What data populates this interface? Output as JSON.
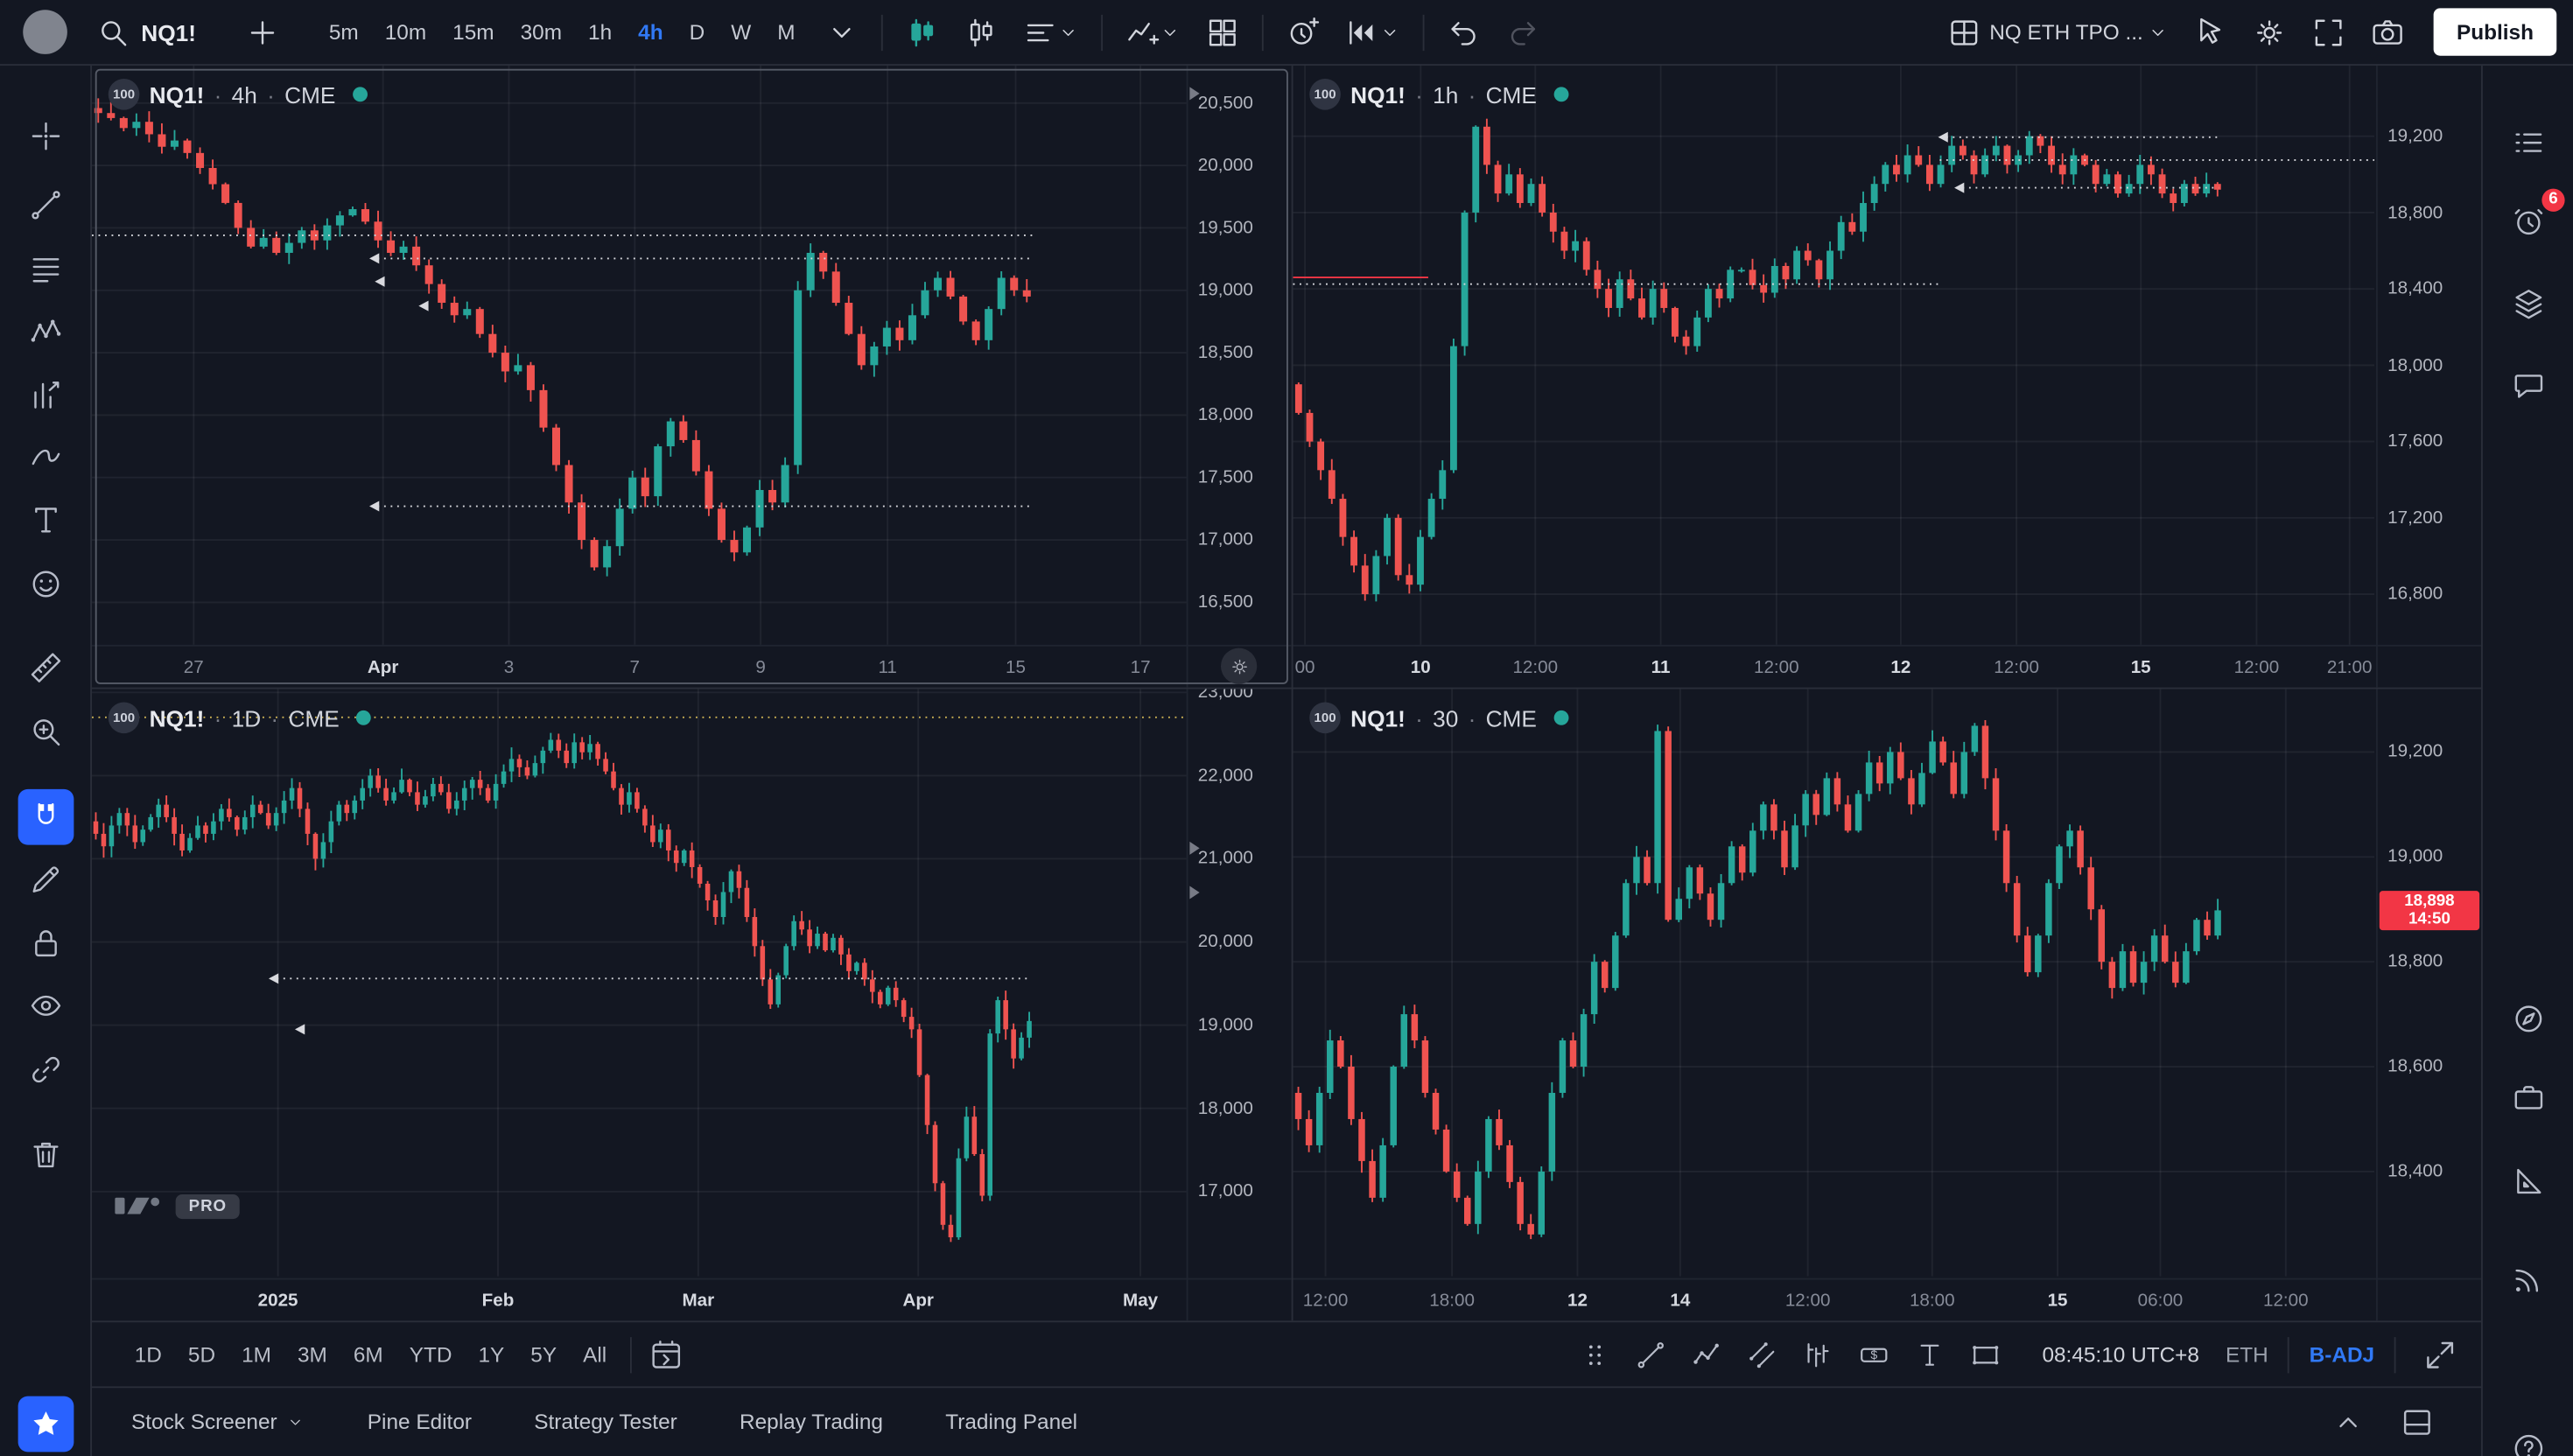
{
  "colors": {
    "up": "#26a69a",
    "down": "#ef5350",
    "accent": "#2962ff",
    "bg": "#131722",
    "border": "#2a2e39",
    "text": "#d1d4dc",
    "muted": "#787b86",
    "axis_text": "#b2b5be",
    "alert": "#f23645",
    "level_line": "#d8d9de",
    "yellow_level": "#cdb254"
  },
  "topbar": {
    "symbol_search": "NQ1!",
    "publish": "Publish",
    "layout_name": "NQ ETH TPO ...",
    "intervals": [
      {
        "label": "5m"
      },
      {
        "label": "10m"
      },
      {
        "label": "15m"
      },
      {
        "label": "30m"
      },
      {
        "label": "1h"
      },
      {
        "label": "4h",
        "active": true
      },
      {
        "label": "D"
      },
      {
        "label": "W"
      },
      {
        "label": "M"
      }
    ],
    "mid_buttons": [
      {
        "icon": "chevron-down",
        "name": "interval-menu-button"
      },
      {
        "sep": true
      },
      {
        "icon": "candles",
        "name": "chart-type-button",
        "tint": "#26a69a"
      },
      {
        "icon": "hollow-candles",
        "name": "chart-style-button"
      },
      {
        "icon": "line-tools",
        "name": "line-type-button",
        "chevron": true
      },
      {
        "sep": true
      },
      {
        "icon": "indicators",
        "name": "indicators-button",
        "chevron": true
      },
      {
        "icon": "grid4",
        "name": "indicator-templates-button"
      },
      {
        "sep": true
      },
      {
        "icon": "alert-plus",
        "name": "create-alert-button"
      },
      {
        "icon": "replay",
        "name": "bar-replay-button",
        "chevron": true
      },
      {
        "sep": true
      },
      {
        "icon": "undo",
        "name": "undo-button"
      },
      {
        "icon": "redo",
        "name": "redo-button",
        "disabled": true
      }
    ],
    "right_buttons": [
      {
        "icon": "layout-grid",
        "name": "layout-select-button",
        "label": true,
        "chevron": true
      },
      {
        "icon": "pointer",
        "name": "quick-actions-button"
      },
      {
        "icon": "gear",
        "name": "settings-button"
      },
      {
        "icon": "fullscreen",
        "name": "fullscreen-button"
      },
      {
        "icon": "camera",
        "name": "snapshot-button"
      }
    ]
  },
  "left_toolbar": {
    "tools": [
      {
        "name": "tool-crosshair",
        "icon": "crosshair"
      },
      {
        "name": "tool-trend-line",
        "icon": "trendline"
      },
      {
        "name": "tool-fib-retracement",
        "icon": "fib"
      },
      {
        "name": "tool-xabcd-pattern",
        "icon": "xabcd"
      },
      {
        "name": "tool-forecast",
        "icon": "forecast"
      },
      {
        "name": "tool-brush",
        "icon": "brush"
      },
      {
        "name": "tool-text",
        "icon": "text-tool"
      },
      {
        "name": "tool-emoji",
        "icon": "smiley"
      },
      {
        "name": "tool-measure",
        "icon": "ruler"
      },
      {
        "name": "tool-zoom",
        "icon": "zoom-plus"
      },
      {
        "name": "magnet-mode",
        "icon": "magnet",
        "active": true
      },
      {
        "name": "drawing-mode",
        "icon": "pencil"
      },
      {
        "name": "lock-drawings",
        "icon": "lock"
      },
      {
        "name": "hide-drawings",
        "icon": "eye"
      },
      {
        "name": "sync-drawings",
        "icon": "link"
      },
      {
        "name": "remove-drawings",
        "icon": "trash"
      },
      {
        "name": "favorite-tools",
        "icon": "star",
        "active": true
      }
    ]
  },
  "right_toolbar": {
    "tools": [
      {
        "name": "watchlist-panel",
        "icon": "watchlist"
      },
      {
        "name": "alerts-panel",
        "icon": "alarm-clock",
        "badge": "6"
      },
      {
        "name": "news-panel",
        "icon": "layers"
      },
      {
        "name": "chat-panel",
        "icon": "chat"
      },
      {
        "name": "object-tree-panel",
        "icon": "compass"
      },
      {
        "name": "portfolio-panel",
        "icon": "briefcase"
      },
      {
        "name": "measure-panel",
        "icon": "protractor"
      },
      {
        "name": "streams-panel",
        "icon": "signal"
      },
      {
        "name": "help-button",
        "icon": "question"
      }
    ]
  },
  "bottom_bar": {
    "ranges": [
      "1D",
      "5D",
      "1M",
      "3M",
      "6M",
      "YTD",
      "1Y",
      "5Y",
      "All"
    ],
    "clock": "08:45:10 UTC+8",
    "session": "ETH",
    "adjustment": "B-ADJ",
    "tools": [
      {
        "icon": "handle",
        "name": "drawing-toolbar-handle"
      },
      {
        "icon": "trendline",
        "name": "tool-trend-line-quick"
      },
      {
        "icon": "polyline",
        "name": "tool-info-line"
      },
      {
        "icon": "channel",
        "name": "tool-parallel-channel"
      },
      {
        "icon": "bars-pattern",
        "name": "tool-bars-pattern"
      },
      {
        "icon": "price-label",
        "name": "tool-price-label"
      },
      {
        "icon": "text-cursor",
        "name": "tool-text-quick"
      },
      {
        "icon": "rect-tool",
        "name": "tool-rectangle"
      }
    ]
  },
  "footer": {
    "items": [
      {
        "label": "Stock Screener",
        "caret": true,
        "name": "stock-screener-tab"
      },
      {
        "label": "Pine Editor",
        "name": "pine-editor-tab"
      },
      {
        "label": "Strategy Tester",
        "name": "strategy-tester-tab"
      },
      {
        "label": "Replay Trading",
        "name": "replay-trading-tab"
      },
      {
        "label": "Trading Panel",
        "name": "trading-panel-tab"
      }
    ]
  },
  "chart_data": [
    {
      "type": "candlestick",
      "symbol": "NQ1!",
      "interval": "4h",
      "exchange": "CME",
      "badge": "100",
      "market_status": "open",
      "active": true,
      "axis_gear": true,
      "y_min": 16160,
      "y_max": 20800,
      "y_ticks": [
        {
          "v": 20500,
          "label": "20,500"
        },
        {
          "v": 20000,
          "label": "20,000"
        },
        {
          "v": 19500,
          "label": "19,500"
        },
        {
          "v": 19000,
          "label": "19,000"
        },
        {
          "v": 18500,
          "label": "18,500"
        },
        {
          "v": 18000,
          "label": "18,000"
        },
        {
          "v": 17500,
          "label": "17,500"
        },
        {
          "v": 17000,
          "label": "17,000"
        },
        {
          "v": 16500,
          "label": "16,500"
        }
      ],
      "x_labels": [
        {
          "p": 0.093,
          "label": "27"
        },
        {
          "p": 0.266,
          "label": "Apr",
          "strong": true
        },
        {
          "p": 0.381,
          "label": "3"
        },
        {
          "p": 0.496,
          "label": "7"
        },
        {
          "p": 0.611,
          "label": "9"
        },
        {
          "p": 0.727,
          "label": "11"
        },
        {
          "p": 0.844,
          "label": "15"
        },
        {
          "p": 0.958,
          "label": "17"
        }
      ],
      "closes": [
        20420,
        20380,
        20300,
        20350,
        20250,
        20150,
        20200,
        20100,
        19980,
        19850,
        19700,
        19500,
        19350,
        19420,
        19300,
        19380,
        19480,
        19400,
        19520,
        19600,
        19650,
        19550,
        19400,
        19300,
        19350,
        19200,
        19050,
        18900,
        18800,
        18850,
        18650,
        18500,
        18350,
        18400,
        18200,
        17900,
        17600,
        17300,
        17000,
        16780,
        16950,
        17250,
        17500,
        17350,
        17750,
        17950,
        17800,
        17550,
        17250,
        17000,
        16900,
        17100,
        17400,
        17300,
        17600,
        19000,
        19300,
        19150,
        18900,
        18650,
        18400,
        18550,
        18700,
        18600,
        18800,
        19000,
        19100,
        18950,
        18750,
        18600,
        18850,
        19100,
        19000,
        18950
      ],
      "levels": [
        {
          "v": 19440,
          "x1": 0,
          "x2": 0.86,
          "dash": true
        },
        {
          "v": 19255,
          "x1": 0.255,
          "x2": 0.86,
          "dash": true,
          "marker": true
        },
        {
          "v": 17270,
          "x1": 0.255,
          "x2": 0.86,
          "dash": true,
          "marker": true
        }
      ],
      "arrows": [
        {
          "x": 0.26,
          "v": 19070
        },
        {
          "x": 0.3,
          "v": 18875
        }
      ],
      "axis_markers": [
        20577
      ]
    },
    {
      "type": "candlestick",
      "symbol": "NQ1!",
      "interval": "1h",
      "exchange": "CME",
      "badge": "100",
      "market_status": "open",
      "y_min": 16535,
      "y_max": 19570,
      "y_ticks": [
        {
          "v": 19200,
          "label": "19,200"
        },
        {
          "v": 18800,
          "label": "18,800"
        },
        {
          "v": 18400,
          "label": "18,400"
        },
        {
          "v": 18000,
          "label": "18,000"
        },
        {
          "v": 17600,
          "label": "17,600"
        },
        {
          "v": 17200,
          "label": "17,200"
        },
        {
          "v": 16800,
          "label": "16,800"
        }
      ],
      "x_labels": [
        {
          "p": 0.011,
          "label": "00"
        },
        {
          "p": 0.118,
          "label": "10",
          "strong": true
        },
        {
          "p": 0.224,
          "label": "12:00"
        },
        {
          "p": 0.34,
          "label": "11",
          "strong": true
        },
        {
          "p": 0.447,
          "label": "12:00"
        },
        {
          "p": 0.562,
          "label": "12",
          "strong": true
        },
        {
          "p": 0.669,
          "label": "12:00"
        },
        {
          "p": 0.784,
          "label": "15",
          "strong": true
        },
        {
          "p": 0.891,
          "label": "12:00"
        },
        {
          "p": 0.977,
          "label": "21:00"
        }
      ],
      "closes": [
        17750,
        17600,
        17450,
        17300,
        17100,
        16950,
        16800,
        17000,
        17200,
        16900,
        16850,
        17100,
        17300,
        17450,
        18100,
        18800,
        19250,
        19050,
        18900,
        19000,
        18850,
        18950,
        18800,
        18700,
        18600,
        18650,
        18500,
        18400,
        18300,
        18450,
        18350,
        18250,
        18400,
        18300,
        18150,
        18100,
        18250,
        18400,
        18350,
        18500,
        18500,
        18420,
        18380,
        18520,
        18450,
        18600,
        18550,
        18450,
        18600,
        18750,
        18700,
        18850,
        18950,
        19050,
        19000,
        19100,
        19050,
        18950,
        19050,
        19150,
        19100,
        19000,
        19100,
        19150,
        19050,
        19100,
        19200,
        19150,
        19050,
        19000,
        19100,
        19050,
        18950,
        19000,
        18900,
        18950,
        19050,
        19000,
        18900,
        18850,
        18950,
        18900,
        18950,
        18920
      ],
      "levels": [
        {
          "v": 18460,
          "x1": 0,
          "x2": 0.125,
          "color": "#f23645"
        },
        {
          "v": 18425,
          "x1": 0,
          "x2": 0.6,
          "dash": true
        },
        {
          "v": 19195,
          "x1": 0.598,
          "x2": 0.856,
          "dash": true,
          "marker": true
        },
        {
          "v": 19075,
          "x1": 0.598,
          "x2": 1.0,
          "dash": true
        },
        {
          "v": 18930,
          "x1": 0.613,
          "x2": 0.856,
          "dash": true,
          "marker": true
        }
      ]
    },
    {
      "type": "candlestick",
      "symbol": "NQ1!",
      "interval": "1D",
      "exchange": "CME",
      "badge": "100",
      "market_status": "open",
      "watermark": "PRO",
      "y_min": 15980,
      "y_max": 23040,
      "y_ticks": [
        {
          "v": 23000,
          "label": "23,000"
        },
        {
          "v": 22000,
          "label": "22,000"
        },
        {
          "v": 21000,
          "label": "21,000"
        },
        {
          "v": 20000,
          "label": "20,000"
        },
        {
          "v": 19000,
          "label": "19,000"
        },
        {
          "v": 18000,
          "label": "18,000"
        },
        {
          "v": 17000,
          "label": "17,000"
        }
      ],
      "x_labels": [
        {
          "p": 0.17,
          "label": "2025",
          "strong": true
        },
        {
          "p": 0.371,
          "label": "Feb",
          "strong": true
        },
        {
          "p": 0.554,
          "label": "Mar",
          "strong": true
        },
        {
          "p": 0.755,
          "label": "Apr",
          "strong": true
        },
        {
          "p": 0.958,
          "label": "May",
          "strong": true
        }
      ],
      "closes": [
        21300,
        21150,
        21400,
        21550,
        21400,
        21200,
        21350,
        21500,
        21650,
        21500,
        21300,
        21100,
        21250,
        21400,
        21300,
        21450,
        21600,
        21500,
        21350,
        21500,
        21650,
        21550,
        21400,
        21550,
        21700,
        21850,
        21600,
        21300,
        21000,
        21200,
        21450,
        21650,
        21550,
        21700,
        21850,
        22000,
        21850,
        21700,
        21800,
        21950,
        21800,
        21650,
        21750,
        21900,
        21800,
        21600,
        21700,
        21850,
        21950,
        21850,
        21700,
        21900,
        22050,
        22200,
        22100,
        22000,
        22150,
        22300,
        22430,
        22300,
        22150,
        22400,
        22280,
        22380,
        22200,
        22050,
        21850,
        21650,
        21800,
        21600,
        21400,
        21200,
        21350,
        21100,
        20950,
        21100,
        20900,
        20700,
        20500,
        20300,
        20600,
        20850,
        20650,
        20300,
        19950,
        19550,
        19250,
        19600,
        19950,
        20250,
        20150,
        19950,
        20100,
        19900,
        20050,
        19850,
        19650,
        19750,
        19550,
        19400,
        19250,
        19450,
        19300,
        19100,
        18950,
        18400,
        17800,
        17100,
        16600,
        16450,
        17400,
        17900,
        17450,
        16950,
        18900,
        19300,
        18950,
        18600,
        18850,
        19050
      ],
      "levels": [
        {
          "v": 22700,
          "x1": 0,
          "x2": 1.0,
          "dash": true,
          "color": "#cdb254"
        },
        {
          "v": 19560,
          "x1": 0.163,
          "x2": 0.855,
          "dash": true,
          "marker": true
        }
      ],
      "arrows": [
        {
          "x": 0.187,
          "v": 18950
        }
      ],
      "axis_markers": [
        21135,
        20585
      ]
    },
    {
      "type": "candlestick",
      "symbol": "NQ1!",
      "interval": "30",
      "exchange": "CME",
      "badge": "100",
      "market_status": "open",
      "y_min": 18200,
      "y_max": 19320,
      "y_ticks": [
        {
          "v": 19200,
          "label": "19,200"
        },
        {
          "v": 19000,
          "label": "19,000"
        },
        {
          "v": 18800,
          "label": "18,800"
        },
        {
          "v": 18600,
          "label": "18,600"
        },
        {
          "v": 18400,
          "label": "18,400"
        }
      ],
      "x_labels": [
        {
          "p": 0.03,
          "label": "12:00"
        },
        {
          "p": 0.147,
          "label": "18:00"
        },
        {
          "p": 0.263,
          "label": "12",
          "strong": true
        },
        {
          "p": 0.358,
          "label": "14",
          "strong": true
        },
        {
          "p": 0.476,
          "label": "12:00"
        },
        {
          "p": 0.591,
          "label": "18:00"
        },
        {
          "p": 0.707,
          "label": "15",
          "strong": true
        },
        {
          "p": 0.802,
          "label": "06:00"
        },
        {
          "p": 0.918,
          "label": "12:00"
        }
      ],
      "closes": [
        18500,
        18450,
        18550,
        18650,
        18600,
        18500,
        18420,
        18350,
        18450,
        18600,
        18700,
        18650,
        18550,
        18480,
        18400,
        18350,
        18300,
        18400,
        18500,
        18450,
        18380,
        18300,
        18280,
        18400,
        18550,
        18650,
        18600,
        18700,
        18800,
        18750,
        18850,
        18950,
        19000,
        18950,
        19240,
        18880,
        18920,
        18980,
        18930,
        18880,
        18950,
        19020,
        18970,
        19050,
        19100,
        19050,
        18980,
        19060,
        19120,
        19080,
        19150,
        19100,
        19050,
        19120,
        19180,
        19140,
        19200,
        19150,
        19100,
        19160,
        19220,
        19180,
        19120,
        19200,
        19250,
        19150,
        19050,
        18950,
        18850,
        18780,
        18850,
        18950,
        19020,
        19050,
        18980,
        18900,
        18800,
        18750,
        18820,
        18760,
        18800,
        18850,
        18800,
        18760,
        18820,
        18880,
        18850,
        18898
      ],
      "last_price": {
        "label": "18,898",
        "countdown": "14:50",
        "v": 18898
      }
    }
  ]
}
